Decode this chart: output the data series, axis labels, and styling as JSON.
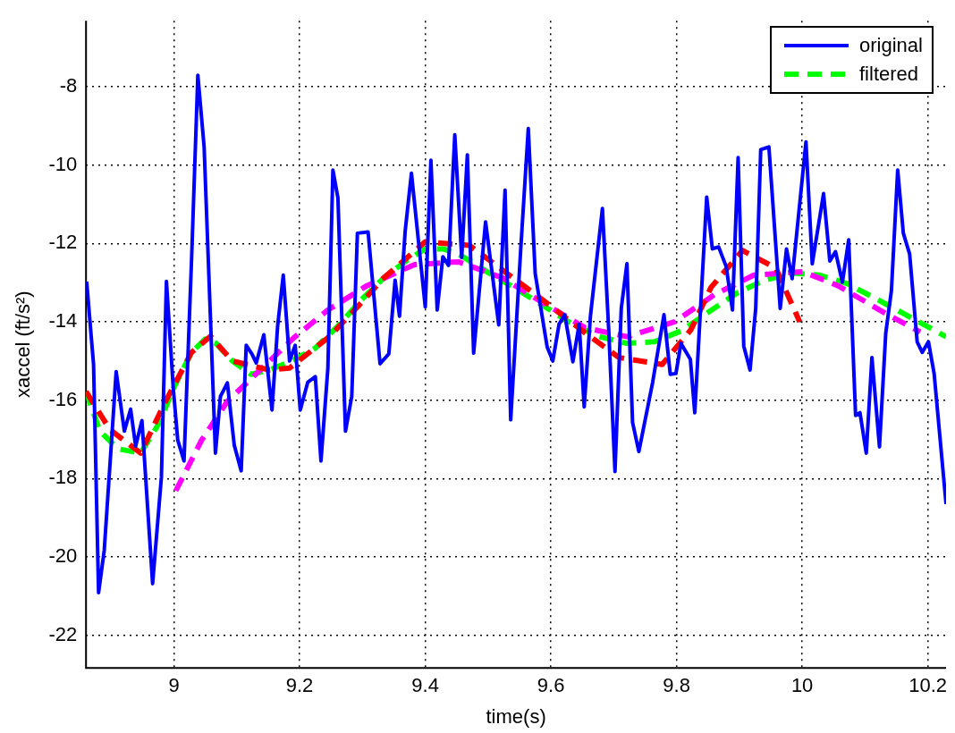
{
  "chart_data": {
    "type": "line",
    "xlabel": "time(s)",
    "ylabel": "xaccel (ft/s²)",
    "xlim": [
      8.86,
      10.229
    ],
    "xticks": [
      9,
      9.2,
      9.4,
      9.6,
      9.8,
      10,
      10.2
    ],
    "ylim": [
      -22.83,
      -6.32
    ],
    "yticks": [
      -22,
      -20,
      -18,
      -16,
      -14,
      -12,
      -10,
      -8
    ],
    "grid": true,
    "legend": "top right",
    "marker": "none",
    "series": [
      {
        "name": "original",
        "color": "#0000ff",
        "line_style": "solid",
        "x": [
          8.861,
          8.872,
          8.88,
          8.889,
          8.908,
          8.921,
          8.931,
          8.939,
          8.949,
          8.966,
          8.98,
          8.988,
          8.999,
          9.006,
          9.016,
          9.028,
          9.038,
          9.048,
          9.066,
          9.074,
          9.085,
          9.096,
          9.107,
          9.115,
          9.124,
          9.131,
          9.143,
          9.156,
          9.165,
          9.174,
          9.184,
          9.193,
          9.201,
          9.213,
          9.225,
          9.234,
          9.245,
          9.253,
          9.261,
          9.273,
          9.283,
          9.292,
          9.309,
          9.328,
          9.342,
          9.352,
          9.359,
          9.368,
          9.378,
          9.4,
          9.409,
          9.419,
          9.428,
          9.437,
          9.447,
          9.458,
          9.467,
          9.477,
          9.496,
          9.517,
          9.527,
          9.536,
          9.552,
          9.564,
          9.575,
          9.594,
          9.603,
          9.613,
          9.622,
          9.635,
          9.645,
          9.653,
          9.663,
          9.682,
          9.692,
          9.702,
          9.712,
          9.721,
          9.73,
          9.74,
          9.762,
          9.78,
          9.79,
          9.799,
          9.807,
          9.822,
          9.829,
          9.848,
          9.857,
          9.867,
          9.879,
          9.889,
          9.898,
          9.907,
          9.917,
          9.926,
          9.934,
          9.947,
          9.965,
          9.975,
          9.984,
          10.006,
          10.016,
          10.034,
          10.044,
          10.053,
          10.064,
          10.074,
          10.085,
          10.092,
          10.102,
          10.111,
          10.123,
          10.133,
          10.142,
          10.152,
          10.161,
          10.171,
          10.183,
          10.191,
          10.201,
          10.21,
          10.229
        ],
        "values": [
          -12.97,
          -15.09,
          -20.91,
          -19.83,
          -15.27,
          -16.79,
          -16.23,
          -17.17,
          -16.52,
          -20.68,
          -17.96,
          -12.97,
          -15.72,
          -17.02,
          -17.55,
          -12.41,
          -7.71,
          -9.54,
          -17.35,
          -15.9,
          -15.56,
          -17.15,
          -17.8,
          -14.6,
          -14.82,
          -15.05,
          -14.33,
          -16.25,
          -14.11,
          -12.81,
          -15,
          -14.6,
          -16.25,
          -15.54,
          -15.4,
          -17.55,
          -15.18,
          -10.13,
          -10.84,
          -16.79,
          -15.9,
          -11.74,
          -11.71,
          -15.07,
          -14.82,
          -12.94,
          -13.86,
          -11.69,
          -10.21,
          -13.62,
          -9.88,
          -13.7,
          -12.34,
          -12.56,
          -9.23,
          -12.36,
          -9.74,
          -14.8,
          -11.45,
          -14.08,
          -10.64,
          -16.5,
          -12.14,
          -9.07,
          -12.77,
          -14.64,
          -15,
          -14.06,
          -13.82,
          -15.02,
          -14.06,
          -16.17,
          -13.84,
          -11.11,
          -14.2,
          -17.82,
          -13.66,
          -12.52,
          -16.57,
          -17.31,
          -15.54,
          -13.82,
          -15.34,
          -15.32,
          -14.55,
          -14.96,
          -16.32,
          -10.82,
          -12.14,
          -12.09,
          -12.59,
          -13.7,
          -9.81,
          -14.62,
          -15.23,
          -13.66,
          -9.61,
          -9.54,
          -13.66,
          -12.14,
          -12.9,
          -9.41,
          -12.52,
          -10.73,
          -12.45,
          -12.21,
          -12.99,
          -11.91,
          -16.39,
          -16.32,
          -17.35,
          -14.91,
          -17.19,
          -14.29,
          -13.21,
          -10.13,
          -11.74,
          -12.27,
          -14.51,
          -14.78,
          -14.51,
          -15.32,
          -18.65
        ]
      },
      {
        "color": "#ff0000",
        "line_style": "dashed",
        "x": [
          8.86,
          8.898,
          8.947,
          8.985,
          9.028,
          9.058,
          9.093,
          9.152,
          9.184,
          9.248,
          9.295,
          9.334,
          9.4,
          9.47,
          9.534,
          9.59,
          9.651,
          9.708,
          9.777,
          9.823,
          9.855,
          9.905,
          9.958,
          9.996
        ],
        "values": [
          -15.78,
          -16.75,
          -17.35,
          -16.08,
          -14.78,
          -14.37,
          -15,
          -15.23,
          -15.18,
          -14.37,
          -13.57,
          -12.88,
          -11.96,
          -12.05,
          -12.81,
          -13.48,
          -14.24,
          -14.91,
          -15.09,
          -14.2,
          -13.12,
          -12.18,
          -12.63,
          -14
        ]
      },
      {
        "color": "#ff00ff",
        "line_style": "dashed",
        "x": [
          9.003,
          9.044,
          9.085,
          9.19,
          9.245,
          9.307,
          9.383,
          9.453,
          9.523,
          9.584,
          9.654,
          9.721,
          9.797,
          9.861,
          9.923,
          10.001,
          10.057,
          10.133,
          10.188
        ],
        "values": [
          -18.31,
          -17.02,
          -16.03,
          -14.42,
          -13.7,
          -13.08,
          -12.54,
          -12.47,
          -12.88,
          -13.48,
          -14.15,
          -14.38,
          -14,
          -13.3,
          -12.81,
          -12.72,
          -13.08,
          -13.79,
          -14.26
        ]
      },
      {
        "name": "filtered",
        "color": "#00ff00",
        "line_style": "dashed",
        "x": [
          8.86,
          8.882,
          8.911,
          8.947,
          8.977,
          9,
          9.028,
          9.05,
          9.067,
          9.093,
          9.123,
          9.152,
          9.188,
          9.225,
          9.261,
          9.298,
          9.334,
          9.371,
          9.4,
          9.429,
          9.458,
          9.502,
          9.546,
          9.59,
          9.634,
          9.677,
          9.721,
          9.765,
          9.809,
          9.853,
          9.897,
          9.94,
          9.984,
          10.028,
          10.072,
          10.115,
          10.159,
          10.203,
          10.229
        ],
        "values": [
          -15.78,
          -16.79,
          -17.24,
          -17.35,
          -16.57,
          -15.67,
          -14.78,
          -14.44,
          -14.55,
          -15,
          -15.34,
          -15.23,
          -15,
          -14.67,
          -14.11,
          -13.44,
          -12.88,
          -12.43,
          -12.14,
          -12.14,
          -12.32,
          -12.76,
          -13.17,
          -13.61,
          -14.06,
          -14.38,
          -14.55,
          -14.51,
          -14.22,
          -13.73,
          -13.26,
          -12.94,
          -12.76,
          -12.81,
          -13.03,
          -13.39,
          -13.77,
          -14.15,
          -14.38
        ]
      }
    ]
  }
}
